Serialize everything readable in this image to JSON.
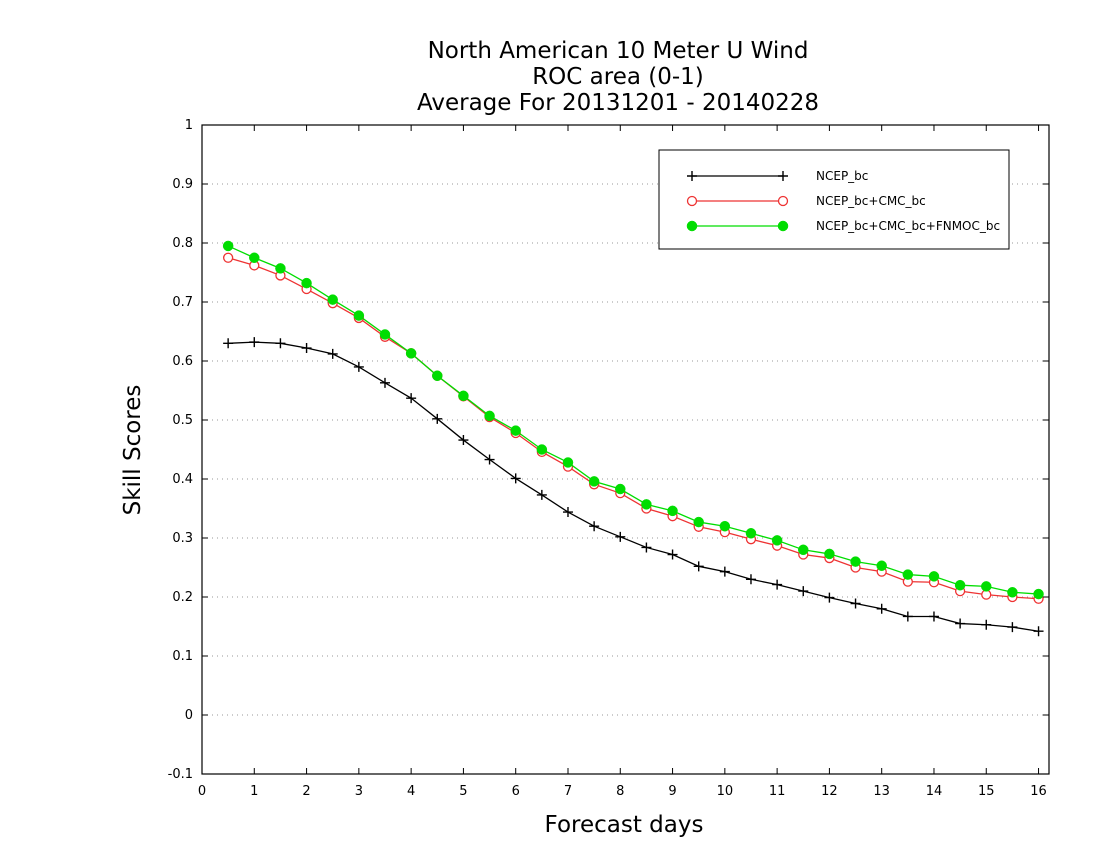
{
  "chart_data": {
    "type": "line",
    "title": [
      "North American 10 Meter U Wind",
      "ROC area (0-1)",
      "Average For 20131201 - 20140228"
    ],
    "xlabel": "Forecast days",
    "ylabel": "Skill Scores",
    "xlim": [
      0,
      16.2
    ],
    "ylim": [
      -0.1,
      1
    ],
    "x_ticks": [
      0,
      1,
      2,
      3,
      4,
      5,
      6,
      7,
      8,
      9,
      10,
      11,
      12,
      13,
      14,
      15,
      16
    ],
    "y_ticks": [
      -0.1,
      0,
      0.1,
      0.2,
      0.3,
      0.4,
      0.5,
      0.6,
      0.7,
      0.8,
      0.9,
      1
    ],
    "y_tick_labels": [
      "-0.1",
      "0",
      "0.1",
      "0.2",
      "0.3",
      "0.4",
      "0.5",
      "0.6",
      "0.7",
      "0.8",
      "0.9",
      "1"
    ],
    "grid": "horizontal-dotted",
    "legend_position": "top-right",
    "x": [
      0.5,
      1,
      1.5,
      2,
      2.5,
      3,
      3.5,
      4,
      4.5,
      5,
      5.5,
      6,
      6.5,
      7,
      7.5,
      8,
      8.5,
      9,
      9.5,
      10,
      10.5,
      11,
      11.5,
      12,
      12.5,
      13,
      13.5,
      14,
      14.5,
      15,
      15.5,
      16
    ],
    "series": [
      {
        "name": "NCEP_bc",
        "color": "#000000",
        "marker": "plus",
        "values": [
          0.63,
          0.632,
          0.63,
          0.622,
          0.612,
          0.59,
          0.563,
          0.537,
          0.502,
          0.466,
          0.433,
          0.401,
          0.373,
          0.344,
          0.32,
          0.302,
          0.284,
          0.272,
          0.252,
          0.243,
          0.23,
          0.221,
          0.21,
          0.199,
          0.189,
          0.18,
          0.167,
          0.167,
          0.155,
          0.153,
          0.149,
          0.142
        ]
      },
      {
        "name": "NCEP_bc+CMC_bc",
        "color": "#ee3333",
        "marker": "open-circle",
        "values": [
          0.775,
          0.762,
          0.745,
          0.722,
          0.698,
          0.673,
          0.641,
          0.613,
          0.575,
          0.54,
          0.505,
          0.478,
          0.446,
          0.421,
          0.391,
          0.376,
          0.35,
          0.337,
          0.319,
          0.31,
          0.298,
          0.287,
          0.272,
          0.266,
          0.25,
          0.243,
          0.226,
          0.225,
          0.21,
          0.204,
          0.2,
          0.197
        ]
      },
      {
        "name": "NCEP_bc+CMC_bc+FNMOC_bc",
        "color": "#00dd00",
        "marker": "filled-circle",
        "values": [
          0.795,
          0.775,
          0.757,
          0.732,
          0.704,
          0.677,
          0.645,
          0.613,
          0.575,
          0.541,
          0.507,
          0.482,
          0.45,
          0.428,
          0.396,
          0.383,
          0.357,
          0.346,
          0.327,
          0.32,
          0.308,
          0.296,
          0.28,
          0.273,
          0.26,
          0.253,
          0.238,
          0.235,
          0.22,
          0.218,
          0.208,
          0.205
        ]
      }
    ]
  }
}
